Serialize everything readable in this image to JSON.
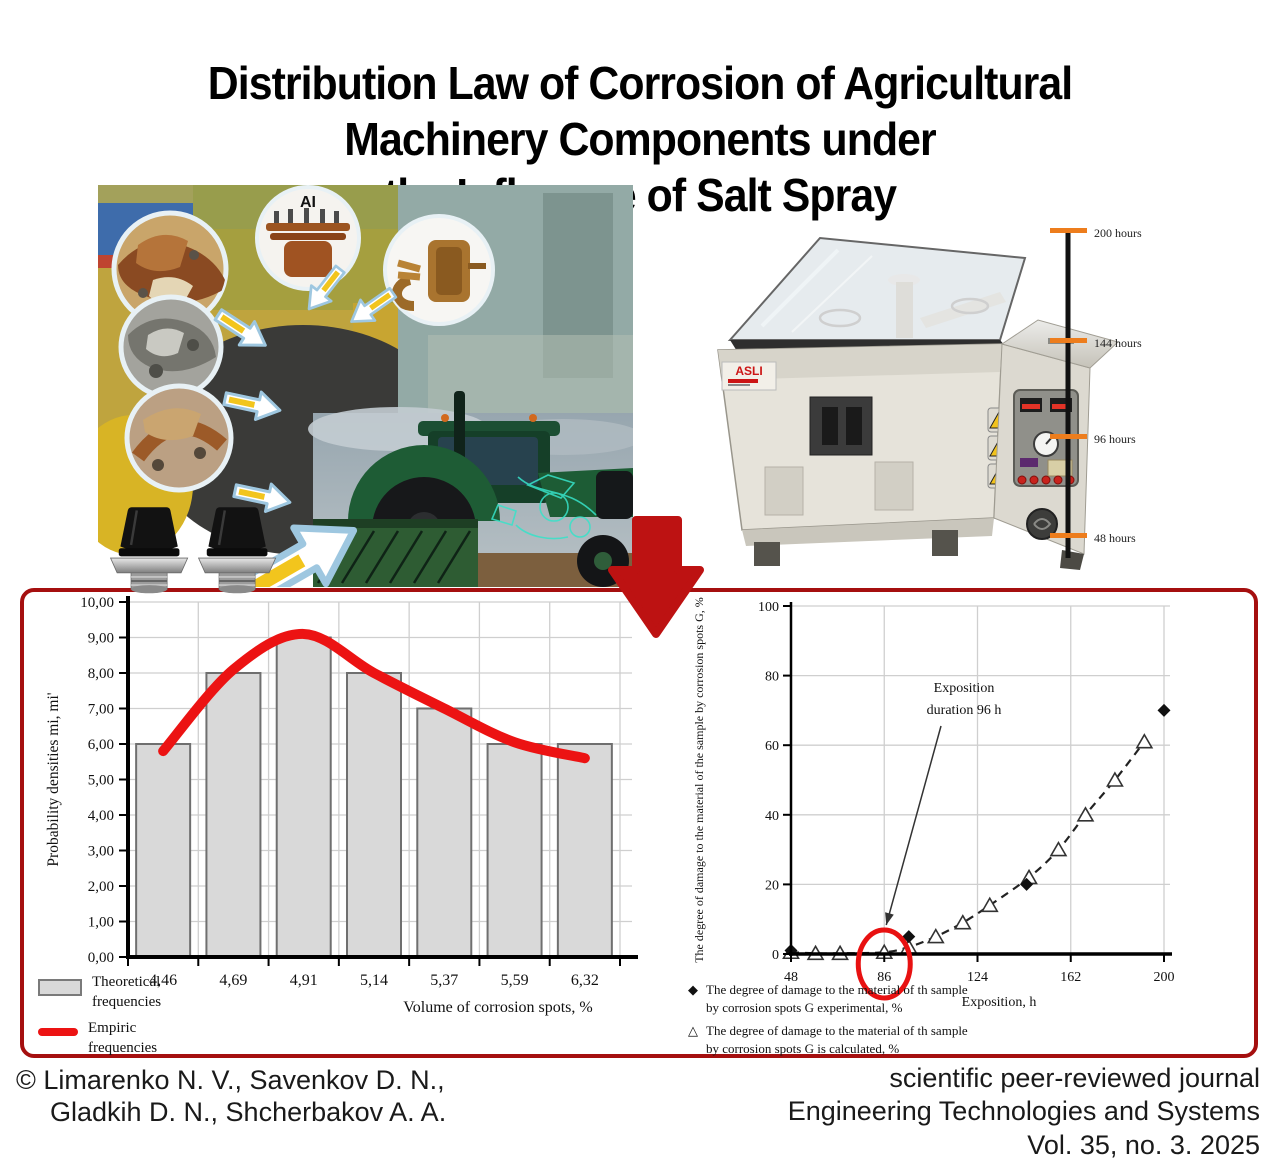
{
  "title": {
    "line1": "Distribution Law of Corrosion of Agricultural",
    "line2": "Machinery Components under",
    "line3": "the Influence of Salt Spray"
  },
  "collage": {
    "ai_label": "AI"
  },
  "chamber": {
    "brand": "ASLI",
    "timeline": [
      "200 hours",
      "144 hours",
      "96 hours",
      "48 hours"
    ],
    "timeline_color": "#ed7d1d"
  },
  "colors": {
    "accent_red": "#ec1313",
    "panel_border_red": "#a50f0f",
    "arrow_red": "#bd1212",
    "bar_fill": "#d9d9d9"
  },
  "chart_data": [
    {
      "type": "bar",
      "categories": [
        "4,46",
        "4,69",
        "4,91",
        "5,14",
        "5,37",
        "5,59",
        "6,32"
      ],
      "series": [
        {
          "name": "Theoretical frequencies",
          "type": "bar",
          "values": [
            6,
            8,
            9,
            8,
            7,
            6,
            6
          ]
        },
        {
          "name": "Empiric frequencies",
          "type": "line",
          "values": [
            5.8,
            8.1,
            9.1,
            8.0,
            7.0,
            6.05,
            5.6
          ]
        }
      ],
      "xlabel": "Volume of corrosion spots, %",
      "ylabel": "Probability densities mi, mi'",
      "ylim": [
        0,
        10
      ],
      "ytick_labels": [
        "0,00",
        "1,00",
        "2,00",
        "3,00",
        "4,00",
        "5,00",
        "6,00",
        "7,00",
        "8,00",
        "9,00",
        "10,00"
      ],
      "grid": true,
      "legend_position": "bottom-left",
      "legend": [
        "Theoretical frequencies",
        "Empiric frequencies"
      ],
      "bar_color": "#d9d9d9",
      "bar_stroke": "#6f6f6f",
      "line_color": "#ec1313"
    },
    {
      "type": "scatter",
      "series": [
        {
          "name": "The degree of damage to the material of th sample by corrosion spots G experimental, %",
          "marker": "diamond",
          "marker_glyph": "◆",
          "points": [
            [
              48,
              1
            ],
            [
              96,
              5
            ],
            [
              144,
              20
            ],
            [
              200,
              70
            ]
          ]
        },
        {
          "name": "The degree of damage to the material of th sample by corrosion spots G is calculated, %",
          "marker": "triangle",
          "marker_glyph": "△",
          "dashed_line": true,
          "points": [
            [
              48,
              0.5
            ],
            [
              58,
              0.2
            ],
            [
              68,
              0.2
            ],
            [
              86,
              0.5
            ],
            [
              96,
              2
            ],
            [
              107,
              5
            ],
            [
              118,
              9
            ],
            [
              129,
              14
            ],
            [
              145,
              22
            ],
            [
              157,
              30
            ],
            [
              168,
              40
            ],
            [
              180,
              50
            ],
            [
              192,
              61
            ]
          ]
        }
      ],
      "xlabel": "Exposition, h",
      "ylabel": "The degree of damage to the material of the sample by corrosion spots G, %",
      "xlim": [
        48,
        200
      ],
      "ylim": [
        0,
        100
      ],
      "xticks": [
        48,
        86,
        124,
        162,
        200
      ],
      "yticks": [
        0,
        20,
        40,
        60,
        80,
        100
      ],
      "grid": true,
      "annotation": {
        "line1": "Exposition",
        "line2": "duration 96 h",
        "target_x": 86,
        "ellipse_color": "#e81111"
      }
    }
  ],
  "footer": {
    "authors_line1": "© Limarenko N. V., Savenkov D. N.,",
    "authors_line2": "Gladkih D. N., Shcherbakov A. A.",
    "journal_line1": "scientific peer-reviewed journal",
    "journal_line2": "Engineering Technologies and Systems",
    "journal_line3": "Vol. 35, no. 3. 2025"
  }
}
